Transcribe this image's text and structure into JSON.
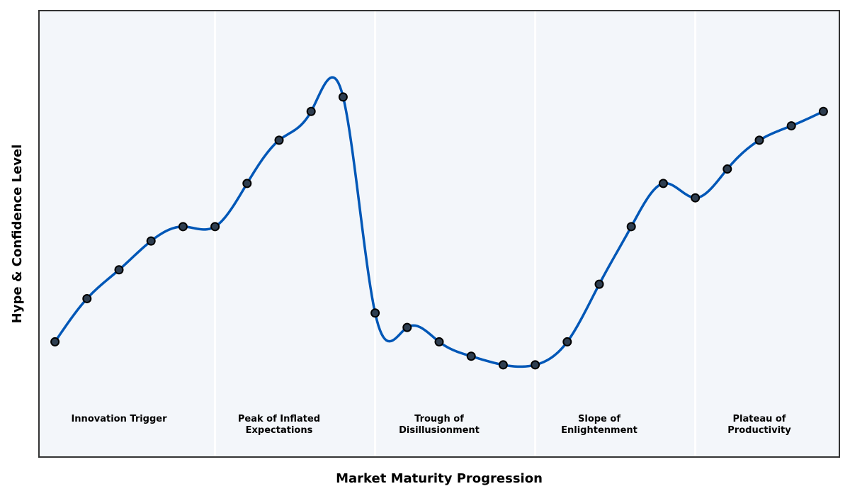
{
  "chart_data": {
    "type": "line",
    "title": "",
    "xlabel": "Market Maturity Progression",
    "ylabel": "Hype & Confidence Level",
    "x": [
      0,
      1,
      2,
      3,
      4,
      5,
      6,
      7,
      8,
      9,
      10,
      11,
      12,
      13,
      14,
      15,
      16,
      17,
      18,
      19,
      20,
      21,
      22,
      23,
      24
    ],
    "series": [
      {
        "values": [
          15,
          30,
          40,
          50,
          55,
          55,
          70,
          85,
          95,
          100,
          25,
          20,
          15,
          10,
          7,
          7,
          15,
          35,
          55,
          70,
          65,
          75,
          85,
          90,
          95
        ]
      }
    ],
    "xlim": [
      -0.5,
      24.5
    ],
    "ylim": [
      -25,
      130
    ],
    "show_axis_ticks": false,
    "grid": false,
    "smoothing": "cubic-spline",
    "phase_dividers": [
      5,
      10,
      15,
      20
    ],
    "phases": [
      {
        "x": 2,
        "lines": [
          "Innovation Trigger"
        ]
      },
      {
        "x": 7,
        "lines": [
          "Peak of Inflated",
          "Expectations"
        ]
      },
      {
        "x": 12,
        "lines": [
          "Trough of",
          "Disillusionment"
        ]
      },
      {
        "x": 17,
        "lines": [
          "Slope of",
          "Enlightenment"
        ]
      },
      {
        "x": 22,
        "lines": [
          "Plateau of",
          "Productivity"
        ]
      }
    ],
    "colors": {
      "line": "#0057b7",
      "marker_fill": "#2e3e50",
      "marker_edge": "#000000",
      "plot_background": "#f3f6fa",
      "divider": "#ffffff",
      "frame": "#333333"
    }
  }
}
